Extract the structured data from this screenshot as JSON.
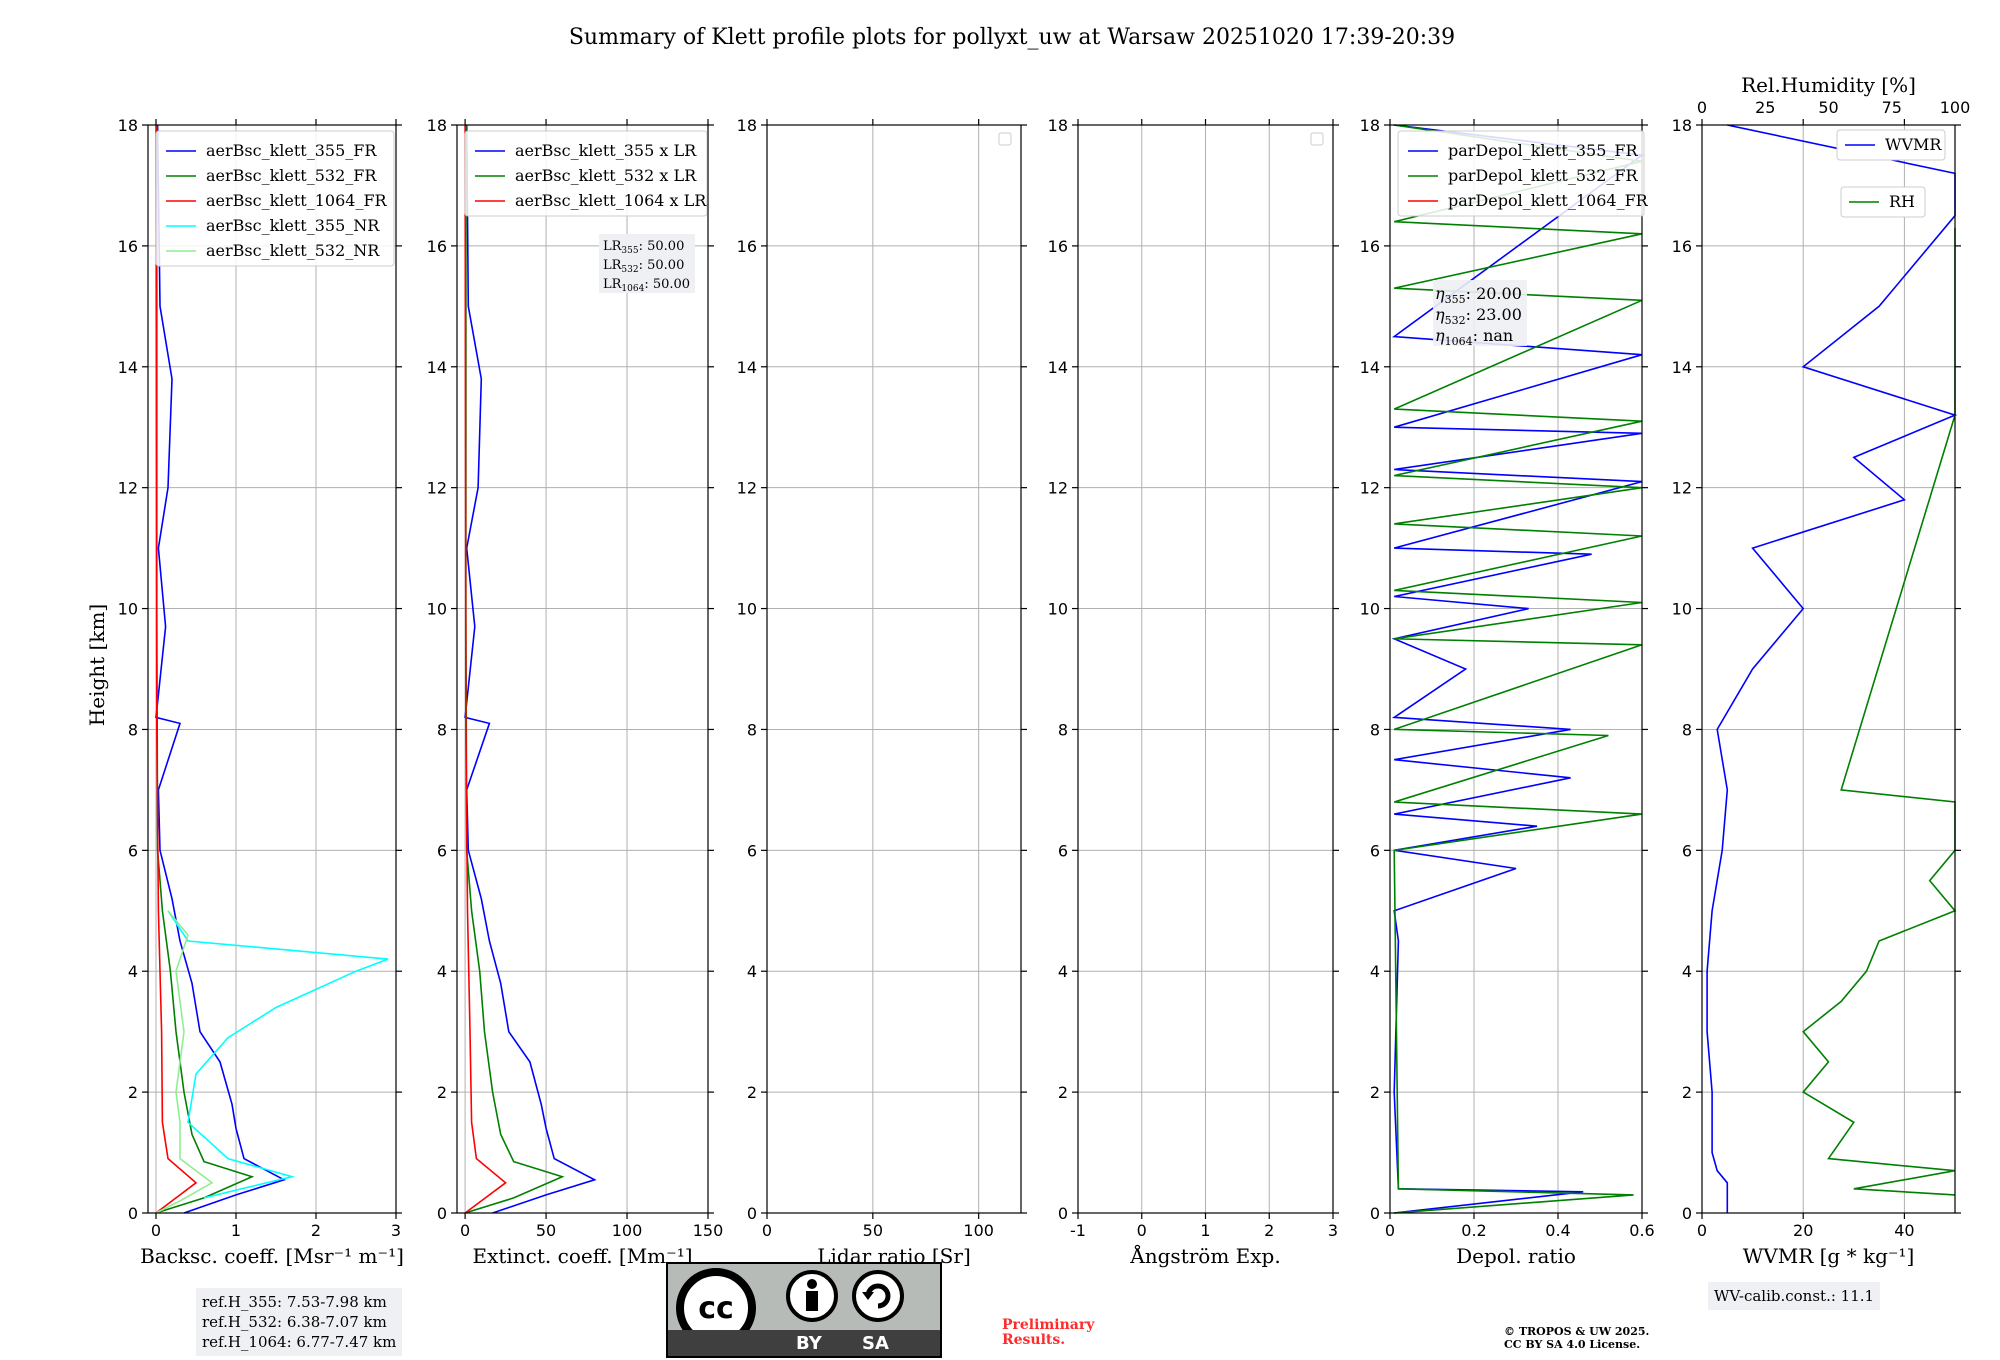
{
  "title": "Summary of Klett profile plots for pollyxt_uw at Warsaw 20251020 17:39-20:39",
  "colors": {
    "blue": "#0000ff",
    "green": "#008000",
    "red": "#ff0000",
    "cyan": "#00ffff",
    "lightgreen": "#90ee90",
    "grid": "#b0b0b0"
  },
  "y_axis": {
    "label": "Height [km]",
    "ylim": [
      0,
      18
    ],
    "ticks": [
      0,
      2,
      4,
      6,
      8,
      10,
      12,
      14,
      16,
      18
    ]
  },
  "chart_data": [
    {
      "type": "line",
      "id": "bsc",
      "xlabel": "Backsc. coeff. [Msr⁻¹ m⁻¹]",
      "xlim": [
        -0.1,
        3
      ],
      "xticks": [
        0,
        1,
        2,
        3
      ],
      "legend_position": "upper-left",
      "series": [
        {
          "name": "aerBsc_klett_355_FR",
          "color": "#0000ff",
          "points": [
            [
              0.35,
              0.0
            ],
            [
              1.0,
              0.3
            ],
            [
              1.6,
              0.55
            ],
            [
              1.1,
              0.9
            ],
            [
              1.0,
              1.4
            ],
            [
              0.95,
              1.8
            ],
            [
              0.8,
              2.5
            ],
            [
              0.55,
              3.0
            ],
            [
              0.45,
              3.8
            ],
            [
              0.3,
              4.5
            ],
            [
              0.2,
              5.2
            ],
            [
              0.05,
              6.0
            ],
            [
              0.03,
              7.0
            ],
            [
              0.3,
              8.1
            ],
            [
              0.0,
              8.2
            ],
            [
              0.12,
              9.7
            ],
            [
              0.03,
              11.0
            ],
            [
              0.15,
              12.0
            ],
            [
              0.2,
              13.8
            ],
            [
              0.05,
              15.0
            ],
            [
              0.02,
              18.0
            ]
          ]
        },
        {
          "name": "aerBsc_klett_532_FR",
          "color": "#008000",
          "points": [
            [
              0.0,
              0.0
            ],
            [
              0.6,
              0.25
            ],
            [
              1.2,
              0.6
            ],
            [
              0.6,
              0.85
            ],
            [
              0.45,
              1.3
            ],
            [
              0.35,
              2.0
            ],
            [
              0.25,
              3.0
            ],
            [
              0.18,
              4.0
            ],
            [
              0.08,
              5.0
            ],
            [
              0.02,
              6.0
            ],
            [
              0.01,
              10.0
            ],
            [
              0.01,
              18.0
            ]
          ]
        },
        {
          "name": "aerBsc_klett_1064_FR",
          "color": "#ff0000",
          "points": [
            [
              0.0,
              0.0
            ],
            [
              0.3,
              0.3
            ],
            [
              0.5,
              0.5
            ],
            [
              0.15,
              0.9
            ],
            [
              0.08,
              1.5
            ],
            [
              0.07,
              3.0
            ],
            [
              0.03,
              5.0
            ],
            [
              0.01,
              8.0
            ],
            [
              0.0,
              18.0
            ]
          ]
        },
        {
          "name": "aerBsc_klett_355_NR",
          "color": "#00ffff",
          "points": [
            [
              0.6,
              0.25
            ],
            [
              1.7,
              0.6
            ],
            [
              0.9,
              0.9
            ],
            [
              0.4,
              1.5
            ],
            [
              0.5,
              2.3
            ],
            [
              0.9,
              2.9
            ],
            [
              1.5,
              3.4
            ],
            [
              2.5,
              4.0
            ],
            [
              2.9,
              4.2
            ],
            [
              0.4,
              4.5
            ],
            [
              0.15,
              5.0
            ]
          ]
        },
        {
          "name": "aerBsc_klett_532_NR",
          "color": "#90ee90",
          "points": [
            [
              0.0,
              0.0
            ],
            [
              0.3,
              0.2
            ],
            [
              0.7,
              0.5
            ],
            [
              0.3,
              0.9
            ],
            [
              0.3,
              1.5
            ],
            [
              0.25,
              2.0
            ],
            [
              0.35,
              3.0
            ],
            [
              0.25,
              4.0
            ],
            [
              0.4,
              4.6
            ],
            [
              0.15,
              5.0
            ]
          ]
        }
      ],
      "notes": {
        "ref_355": "ref.H_355: 7.53-7.98 km",
        "ref_532": "ref.H_532: 6.38-7.07 km",
        "ref_1064": "ref.H_1064: 6.77-7.47 km"
      }
    },
    {
      "type": "line",
      "id": "ext",
      "xlabel": "Extinct. coeff. [Mm⁻¹]",
      "xlim": [
        -5,
        150
      ],
      "xticks": [
        0,
        50,
        100,
        150
      ],
      "legend_position": "upper-left",
      "series": [
        {
          "name": "aerBsc_klett_355 x LR",
          "color": "#0000ff",
          "points": [
            [
              17,
              0.0
            ],
            [
              50,
              0.3
            ],
            [
              80,
              0.55
            ],
            [
              55,
              0.9
            ],
            [
              50,
              1.4
            ],
            [
              47,
              1.8
            ],
            [
              40,
              2.5
            ],
            [
              27,
              3.0
            ],
            [
              22,
              3.8
            ],
            [
              15,
              4.5
            ],
            [
              10,
              5.2
            ],
            [
              2,
              6.0
            ],
            [
              1,
              7.0
            ],
            [
              15,
              8.1
            ],
            [
              0,
              8.2
            ],
            [
              6,
              9.7
            ],
            [
              1,
              11.0
            ],
            [
              8,
              12.0
            ],
            [
              10,
              13.8
            ],
            [
              2,
              15.0
            ],
            [
              1,
              18.0
            ]
          ]
        },
        {
          "name": "aerBsc_klett_532 x LR",
          "color": "#008000",
          "points": [
            [
              0,
              0.0
            ],
            [
              30,
              0.25
            ],
            [
              60,
              0.6
            ],
            [
              30,
              0.85
            ],
            [
              22,
              1.3
            ],
            [
              17,
              2.0
            ],
            [
              12,
              3.0
            ],
            [
              9,
              4.0
            ],
            [
              4,
              5.0
            ],
            [
              1,
              6.0
            ],
            [
              0.5,
              10.0
            ],
            [
              0.5,
              18.0
            ]
          ]
        },
        {
          "name": "aerBsc_klett_1064 x LR",
          "color": "#ff0000",
          "points": [
            [
              0,
              0.0
            ],
            [
              15,
              0.3
            ],
            [
              25,
              0.5
            ],
            [
              7,
              0.9
            ],
            [
              4,
              1.5
            ],
            [
              3,
              3.0
            ],
            [
              1.5,
              5.0
            ],
            [
              0.5,
              8.0
            ],
            [
              0,
              18.0
            ]
          ]
        }
      ],
      "notes": {
        "lr_355": "50.00",
        "lr_532": "50.00",
        "lr_1064": "50.00"
      }
    },
    {
      "type": "line",
      "id": "lr",
      "xlabel": "Lidar ratio [Sr]",
      "xlim": [
        0,
        120
      ],
      "xticks": [
        0,
        50,
        100
      ],
      "series": []
    },
    {
      "type": "line",
      "id": "ang",
      "xlabel": "Ångström Exp.",
      "xlim": [
        -1,
        3
      ],
      "xticks": [
        -1,
        0,
        1,
        2,
        3
      ],
      "series": []
    },
    {
      "type": "line",
      "id": "depol",
      "xlabel": "Depol. ratio",
      "xlim": [
        0.0,
        0.6
      ],
      "xticks": [
        0.0,
        0.2,
        0.4,
        0.6
      ],
      "legend_position": "upper-left",
      "series": [
        {
          "name": "parDepol_klett_355_FR",
          "color": "#0000ff",
          "points": [
            [
              0.01,
              0.0
            ],
            [
              0.46,
              0.35
            ],
            [
              0.02,
              0.4
            ],
            [
              0.01,
              2.0
            ],
            [
              0.02,
              4.5
            ],
            [
              0.01,
              5.0
            ],
            [
              0.3,
              5.7
            ],
            [
              0.01,
              6.0
            ],
            [
              0.35,
              6.4
            ],
            [
              0.01,
              6.6
            ],
            [
              0.43,
              7.2
            ],
            [
              0.01,
              7.5
            ],
            [
              0.43,
              8.0
            ],
            [
              0.01,
              8.2
            ],
            [
              0.18,
              9.0
            ],
            [
              0.01,
              9.5
            ],
            [
              0.33,
              10.0
            ],
            [
              0.01,
              10.2
            ],
            [
              0.48,
              10.9
            ],
            [
              0.01,
              11.0
            ],
            [
              0.6,
              12.1
            ],
            [
              0.01,
              12.3
            ],
            [
              0.6,
              12.9
            ],
            [
              0.01,
              13.0
            ],
            [
              0.6,
              14.2
            ],
            [
              0.01,
              14.5
            ],
            [
              0.6,
              17.5
            ],
            [
              0.01,
              18.0
            ]
          ]
        },
        {
          "name": "parDepol_klett_532_FR",
          "color": "#008000",
          "points": [
            [
              0.01,
              0.0
            ],
            [
              0.58,
              0.3
            ],
            [
              0.02,
              0.4
            ],
            [
              0.01,
              6.0
            ],
            [
              0.6,
              6.6
            ],
            [
              0.01,
              6.8
            ],
            [
              0.52,
              7.9
            ],
            [
              0.01,
              8.0
            ],
            [
              0.6,
              9.4
            ],
            [
              0.01,
              9.5
            ],
            [
              0.6,
              10.1
            ],
            [
              0.01,
              10.3
            ],
            [
              0.6,
              11.2
            ],
            [
              0.01,
              11.4
            ],
            [
              0.6,
              12.0
            ],
            [
              0.01,
              12.2
            ],
            [
              0.6,
              13.1
            ],
            [
              0.01,
              13.3
            ],
            [
              0.6,
              15.1
            ],
            [
              0.01,
              15.3
            ],
            [
              0.6,
              16.2
            ],
            [
              0.01,
              16.4
            ],
            [
              0.6,
              17.4
            ],
            [
              0.01,
              18.0
            ]
          ]
        },
        {
          "name": "parDepol_klett_1064_FR",
          "color": "#ff0000",
          "points": []
        }
      ],
      "notes": {
        "eta_355": "20.00",
        "eta_532": "23.00",
        "eta_1064": "nan"
      }
    },
    {
      "type": "line",
      "id": "wv",
      "xlabel": "WVMR [g * kg⁻¹]",
      "xlim": [
        0,
        50
      ],
      "xticks": [
        0,
        20,
        40
      ],
      "top_axis": {
        "label": "Rel.Humidity [%]",
        "xlim": [
          0,
          100
        ],
        "xticks": [
          0,
          25,
          50,
          75,
          100
        ]
      },
      "series": [
        {
          "name": "WVMR",
          "color": "#0000ff",
          "points": [
            [
              5,
              0.0
            ],
            [
              5,
              0.5
            ],
            [
              3,
              0.7
            ],
            [
              2,
              1.0
            ],
            [
              2,
              2.0
            ],
            [
              1,
              3.0
            ],
            [
              1,
              4.0
            ],
            [
              2,
              5.0
            ],
            [
              4,
              6.0
            ],
            [
              5,
              7.0
            ],
            [
              3,
              8.0
            ],
            [
              10,
              9.0
            ],
            [
              20,
              10.0
            ],
            [
              10,
              11.0
            ],
            [
              40,
              11.8
            ],
            [
              30,
              12.5
            ],
            [
              50,
              13.2
            ],
            [
              20,
              14.0
            ],
            [
              35,
              15.0
            ],
            [
              50,
              16.5
            ],
            [
              50,
              17.2
            ],
            [
              5,
              18.0
            ]
          ]
        },
        {
          "name": "RH",
          "color": "#008000",
          "points": [
            [
              100,
              0.3
            ],
            [
              60,
              0.4
            ],
            [
              100,
              0.7
            ],
            [
              50,
              0.9
            ],
            [
              60,
              1.5
            ],
            [
              40,
              2.0
            ],
            [
              50,
              2.5
            ],
            [
              40,
              3.0
            ],
            [
              55,
              3.5
            ],
            [
              65,
              4.0
            ],
            [
              70,
              4.5
            ],
            [
              100,
              5.0
            ],
            [
              90,
              5.5
            ],
            [
              100,
              6.0
            ],
            [
              100,
              6.8
            ],
            [
              55,
              7.0
            ],
            [
              100,
              13.2
            ],
            [
              100,
              13.5
            ],
            [
              100,
              14.3
            ],
            [
              100,
              16.3
            ]
          ]
        }
      ],
      "notes": {
        "wv_calib": "WV-calib.const.: 11.1"
      }
    }
  ],
  "footer": {
    "ref_h_355": "ref.H_355: 7.53-7.98 km",
    "ref_h_532": "ref.H_532: 6.38-7.07 km",
    "ref_h_1064": "ref.H_1064: 6.77-7.47 km",
    "license_by": "BY",
    "license_sa": "SA",
    "preliminary_line1": "Preliminary",
    "preliminary_line2": "Results.",
    "copyright_line1": "© TROPOS & UW 2025.",
    "copyright_line2": "CC BY SA 4.0 License.",
    "wv_calib": "WV-calib.const.: 11.1"
  }
}
